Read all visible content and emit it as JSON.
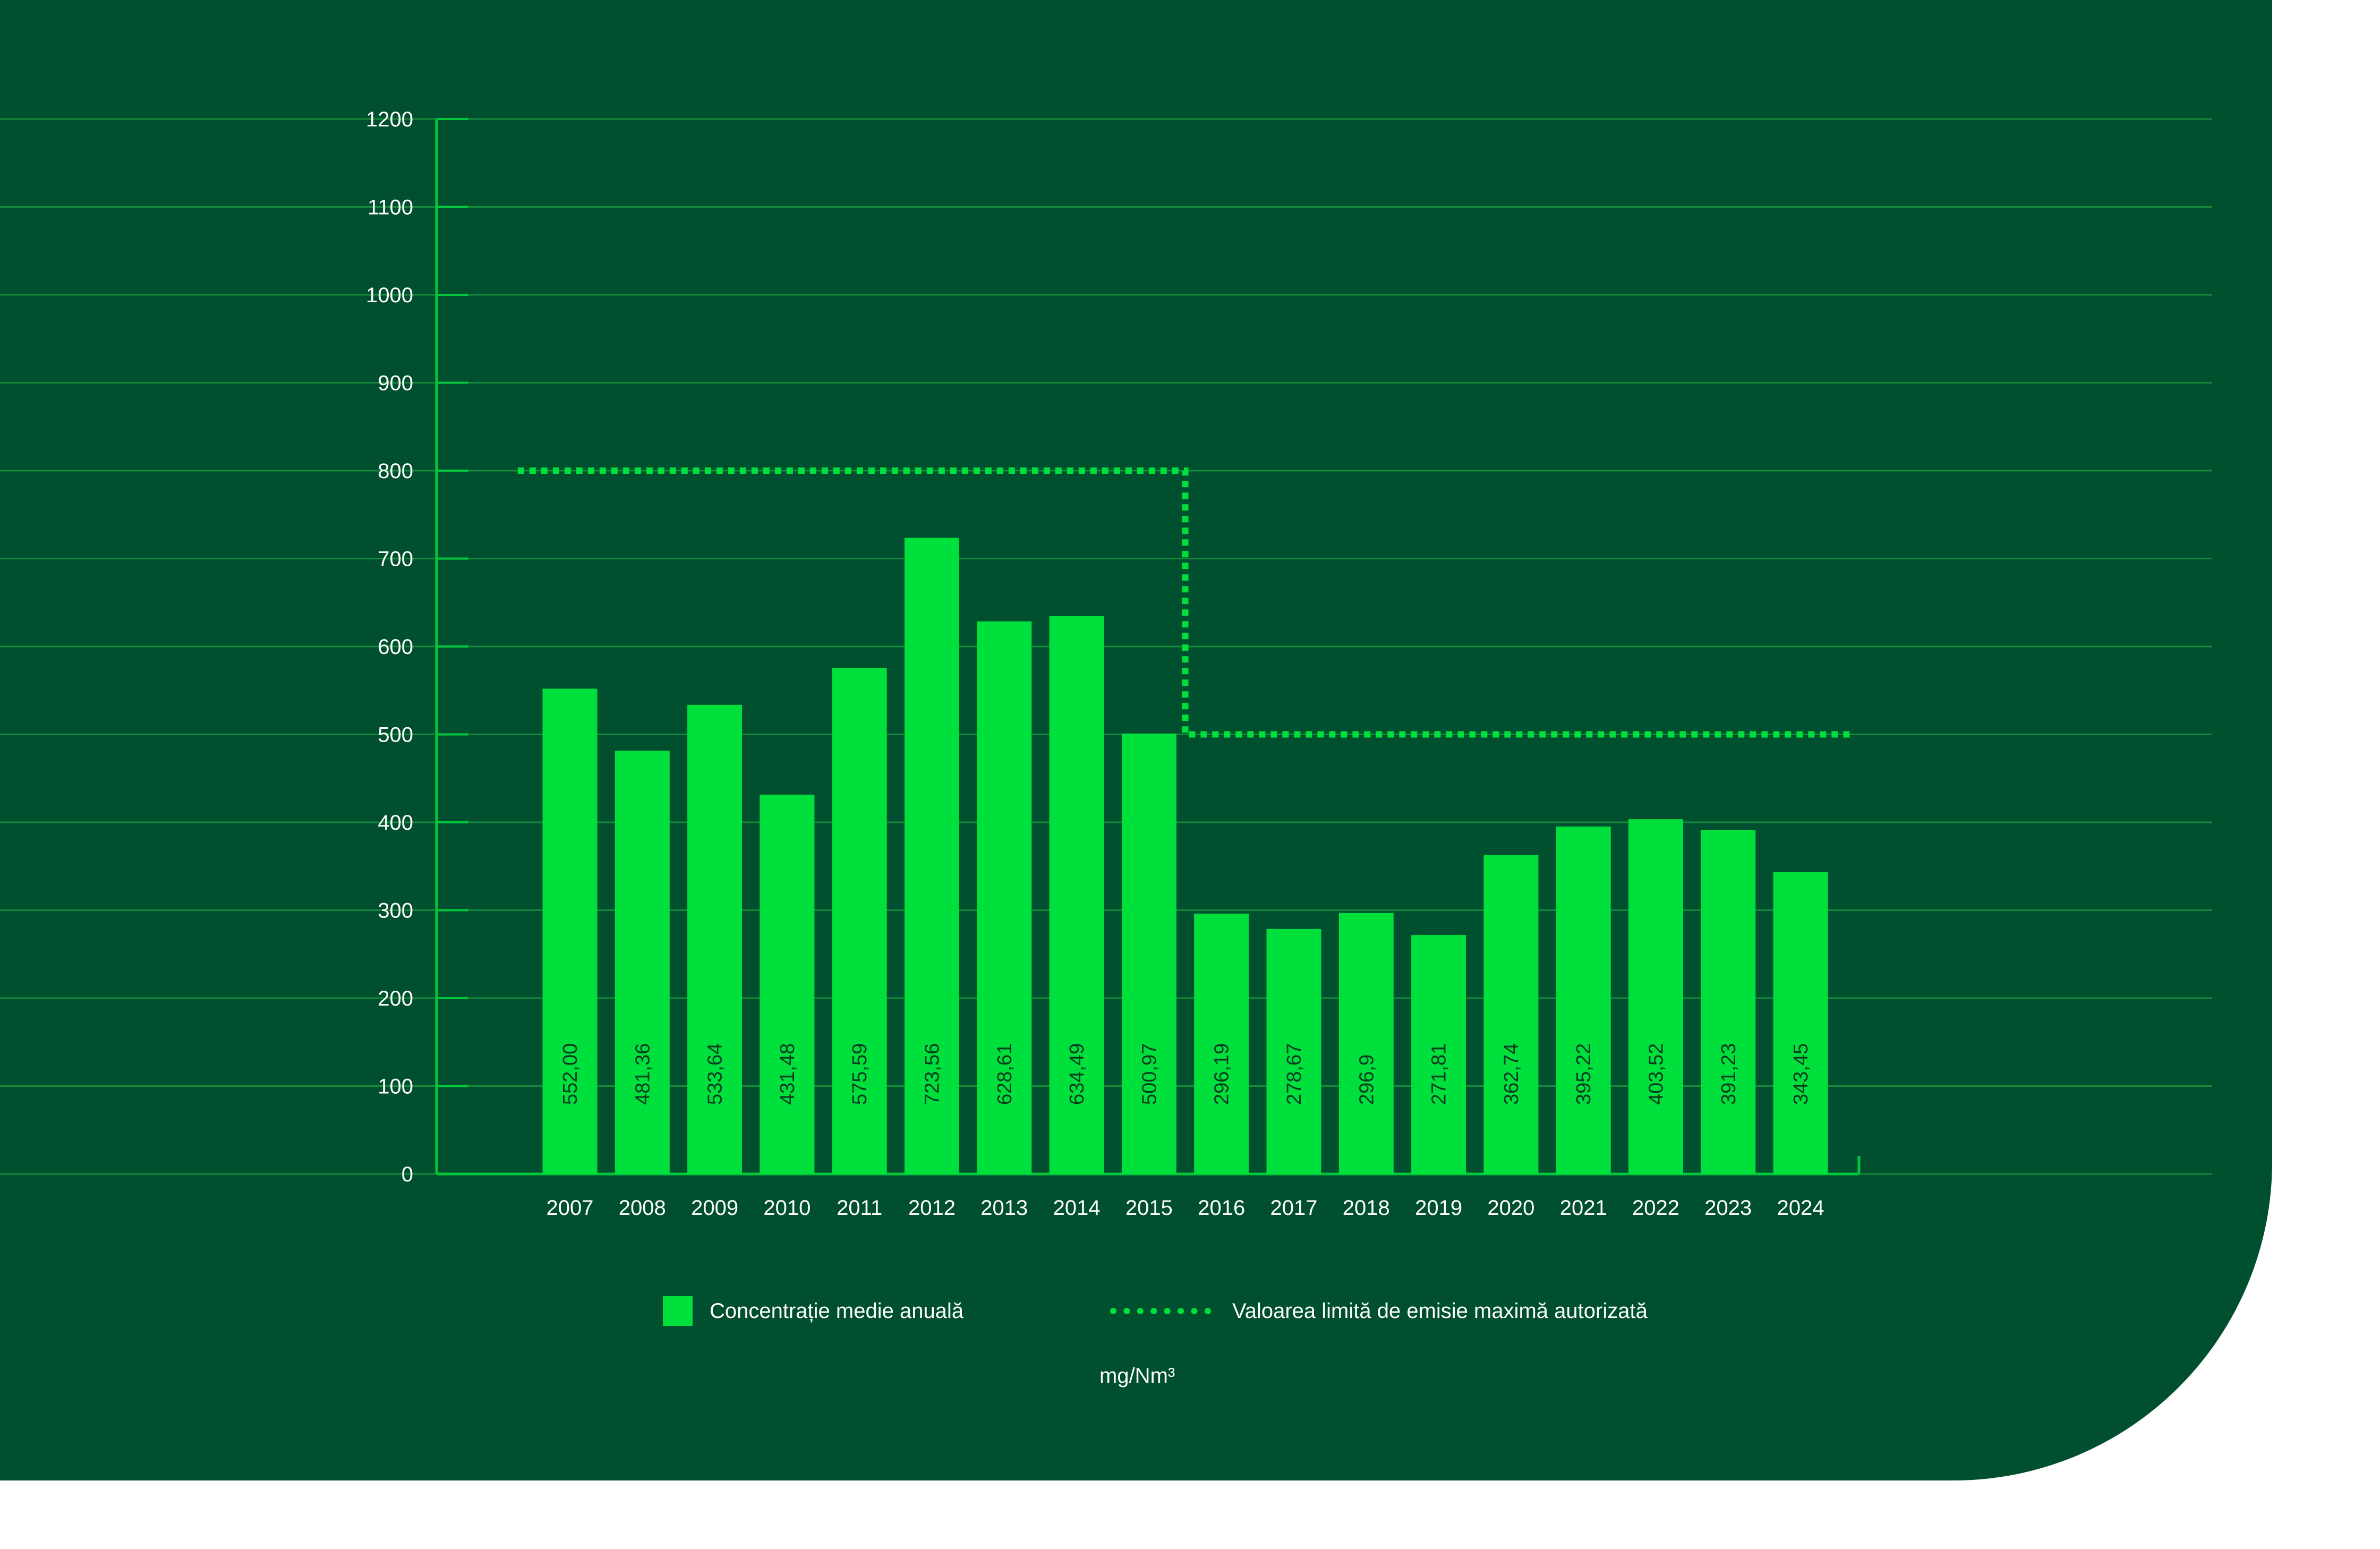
{
  "chart_data": {
    "type": "bar",
    "categories": [
      "2007",
      "2008",
      "2009",
      "2010",
      "2011",
      "2012",
      "2013",
      "2014",
      "2015",
      "2016",
      "2017",
      "2018",
      "2019",
      "2020",
      "2021",
      "2022",
      "2023",
      "2024"
    ],
    "series": [
      {
        "name": "Concentrație medie anuală",
        "values": [
          552.0,
          481.36,
          533.64,
          431.48,
          575.59,
          723.56,
          628.61,
          634.49,
          500.97,
          296.19,
          278.67,
          296.9,
          271.81,
          362.74,
          395.22,
          403.52,
          391.23,
          343.45
        ],
        "labels": [
          "552,00",
          "481,36",
          "533,64",
          "431,48",
          "575,59",
          "723,56",
          "628,61",
          "634,49",
          "500,97",
          "296,19",
          "278,67",
          "296,9",
          "271,81",
          "362,74",
          "395,22",
          "403,52",
          "391,23",
          "343,45"
        ],
        "color": "#00e03c"
      }
    ],
    "limit_series": {
      "name": "Valoarea limită de emisie maximă autorizată",
      "segments": [
        {
          "from": "2007",
          "to": "2015",
          "value": 800
        },
        {
          "from": "2016",
          "to": "2024",
          "value": 500
        }
      ],
      "color": "#00e03c",
      "style": "dotted"
    },
    "ylim": [
      0,
      1200
    ],
    "yticks": [
      "0",
      "100",
      "200",
      "300",
      "400",
      "500",
      "600",
      "700",
      "800",
      "900",
      "1000",
      "1100",
      "1200"
    ],
    "unit": "mg/Nm³",
    "grid": true,
    "legend_position": "bottom"
  },
  "colors": {
    "background": "#004f2f",
    "bar": "#00e03c",
    "grid": "#158a3a",
    "axis": "#00c83a",
    "text": "#ffffff",
    "bar_label": "#0a3b20"
  }
}
